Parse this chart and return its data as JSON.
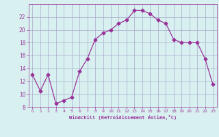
{
  "x": [
    0,
    1,
    2,
    3,
    4,
    5,
    6,
    7,
    8,
    9,
    10,
    11,
    12,
    13,
    14,
    15,
    16,
    17,
    18,
    19,
    20,
    21,
    22,
    23
  ],
  "y": [
    13,
    10.5,
    13,
    8.5,
    9,
    9.5,
    13.5,
    15.5,
    18.5,
    19.5,
    20,
    21,
    21.5,
    23,
    23,
    22.5,
    21.5,
    21,
    18.5,
    18,
    18,
    18,
    15.5,
    11.5
  ],
  "line_color": "#993399",
  "marker": "D",
  "marker_size": 2.5,
  "bg_color": "#d8f0f0",
  "grid_color": "#aaaacc",
  "xlabel": "Windchill (Refroidissement éolien,°C)",
  "xlabel_color": "#993399",
  "tick_color": "#993399",
  "ylim": [
    8,
    24
  ],
  "yticks": [
    8,
    10,
    12,
    14,
    16,
    18,
    20,
    22
  ],
  "xlim": [
    -0.5,
    23.5
  ],
  "xticks": [
    0,
    1,
    2,
    3,
    4,
    5,
    6,
    7,
    8,
    9,
    10,
    11,
    12,
    13,
    14,
    15,
    16,
    17,
    18,
    19,
    20,
    21,
    22,
    23
  ]
}
